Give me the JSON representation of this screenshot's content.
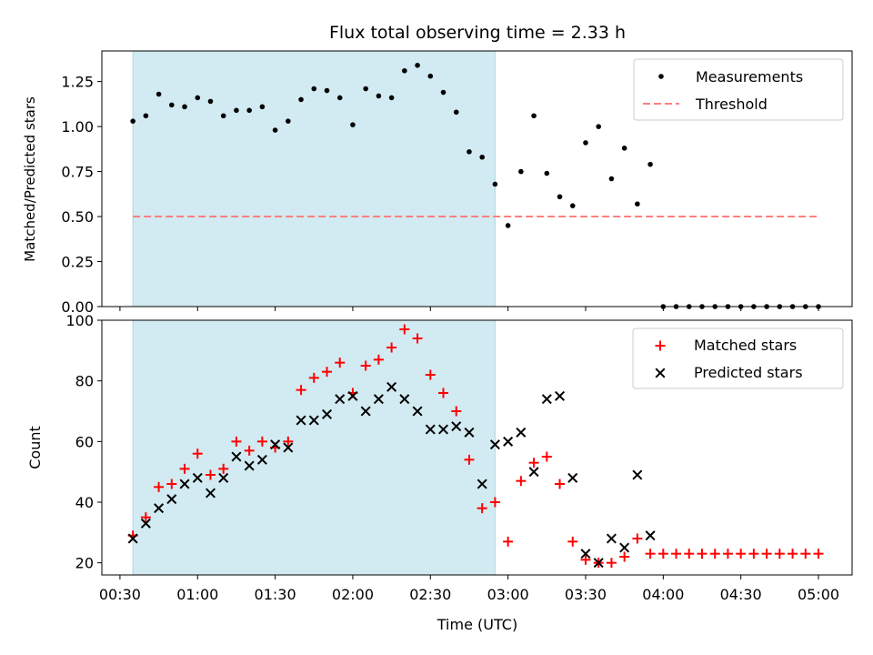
{
  "chart_data": [
    {
      "type": "scatter",
      "title": "Flux total observing time = 2.33 h",
      "xlabel": "",
      "ylabel": "Matched/Predicted stars",
      "ylim": [
        0,
        1.42
      ],
      "yticks": [
        0.0,
        0.25,
        0.5,
        0.75,
        1.0,
        1.25
      ],
      "ytick_labels": [
        "0.00",
        "0.25",
        "0.50",
        "0.75",
        "1.00",
        "1.25"
      ],
      "grid": false,
      "legend": "top-right",
      "shaded_region": {
        "start": "00:35",
        "end": "02:55",
        "color": "#add8e6"
      },
      "threshold": {
        "name": "Threshold",
        "value": 0.5,
        "from": "00:35",
        "to": "05:00",
        "color": "#ff7f7f"
      },
      "series": [
        {
          "name": "Measurements",
          "color": "#000000",
          "marker": "dot",
          "x": [
            "00:35",
            "00:40",
            "00:45",
            "00:50",
            "00:55",
            "01:00",
            "01:05",
            "01:10",
            "01:15",
            "01:20",
            "01:25",
            "01:30",
            "01:35",
            "01:40",
            "01:45",
            "01:50",
            "01:55",
            "02:00",
            "02:05",
            "02:10",
            "02:15",
            "02:20",
            "02:25",
            "02:30",
            "02:35",
            "02:40",
            "02:45",
            "02:50",
            "02:55",
            "03:00",
            "03:05",
            "03:10",
            "03:15",
            "03:20",
            "03:25",
            "03:30",
            "03:35",
            "03:40",
            "03:45",
            "03:50",
            "03:55",
            "04:00",
            "04:05",
            "04:10",
            "04:15",
            "04:20",
            "04:25",
            "04:30",
            "04:35",
            "04:40",
            "04:45",
            "04:50",
            "04:55",
            "05:00"
          ],
          "y": [
            1.03,
            1.06,
            1.18,
            1.12,
            1.11,
            1.16,
            1.14,
            1.06,
            1.09,
            1.09,
            1.11,
            0.98,
            1.03,
            1.15,
            1.21,
            1.2,
            1.16,
            1.01,
            1.21,
            1.17,
            1.16,
            1.31,
            1.34,
            1.28,
            1.19,
            1.08,
            0.86,
            0.83,
            0.68,
            0.45,
            0.75,
            1.06,
            0.74,
            0.61,
            0.56,
            0.91,
            1.0,
            0.71,
            0.88,
            0.57,
            0.79,
            0,
            0,
            0,
            0,
            0,
            0,
            0,
            0,
            0,
            0,
            0,
            0,
            0
          ]
        }
      ]
    },
    {
      "type": "scatter",
      "title": "",
      "xlabel": "Time (UTC)",
      "ylabel": "Count",
      "ylim": [
        16,
        100
      ],
      "yticks": [
        20,
        40,
        60,
        80,
        100
      ],
      "ytick_labels": [
        "20",
        "40",
        "60",
        "80",
        "100"
      ],
      "xticks": [
        "00:30",
        "01:00",
        "01:30",
        "02:00",
        "02:30",
        "03:00",
        "03:30",
        "04:00",
        "04:30",
        "05:00"
      ],
      "xlim": [
        "00:23",
        "05:13"
      ],
      "grid": false,
      "legend": "top-right",
      "shaded_region": {
        "start": "00:35",
        "end": "02:55",
        "color": "#add8e6"
      },
      "series": [
        {
          "name": "Matched stars",
          "color": "#ff0000",
          "marker": "plus",
          "x": [
            "00:35",
            "00:40",
            "00:45",
            "00:50",
            "00:55",
            "01:00",
            "01:05",
            "01:10",
            "01:15",
            "01:20",
            "01:25",
            "01:30",
            "01:35",
            "01:40",
            "01:45",
            "01:50",
            "01:55",
            "02:00",
            "02:05",
            "02:10",
            "02:15",
            "02:20",
            "02:25",
            "02:30",
            "02:35",
            "02:40",
            "02:45",
            "02:50",
            "02:55",
            "03:00",
            "03:05",
            "03:10",
            "03:15",
            "03:20",
            "03:25",
            "03:30",
            "03:35",
            "03:40",
            "03:45",
            "03:50",
            "03:55",
            "04:00",
            "04:05",
            "04:10",
            "04:15",
            "04:20",
            "04:25",
            "04:30",
            "04:35",
            "04:40",
            "04:45",
            "04:50",
            "04:55",
            "05:00"
          ],
          "y": [
            29,
            35,
            45,
            46,
            51,
            56,
            49,
            51,
            60,
            57,
            60,
            58,
            60,
            77,
            81,
            83,
            86,
            76,
            85,
            87,
            91,
            97,
            94,
            82,
            76,
            70,
            54,
            38,
            40,
            27,
            47,
            53,
            55,
            46,
            27,
            21,
            20,
            20,
            22,
            28,
            23,
            23,
            23,
            23,
            23,
            23,
            23,
            23,
            23,
            23,
            23,
            23,
            23,
            23
          ]
        },
        {
          "name": "Predicted stars",
          "color": "#000000",
          "marker": "x",
          "x": [
            "00:35",
            "00:40",
            "00:45",
            "00:50",
            "00:55",
            "01:00",
            "01:05",
            "01:10",
            "01:15",
            "01:20",
            "01:25",
            "01:30",
            "01:35",
            "01:40",
            "01:45",
            "01:50",
            "01:55",
            "02:00",
            "02:05",
            "02:10",
            "02:15",
            "02:20",
            "02:25",
            "02:30",
            "02:35",
            "02:40",
            "02:45",
            "02:50",
            "02:55",
            "03:00",
            "03:05",
            "03:10",
            "03:15",
            "03:20",
            "03:25",
            "03:30",
            "03:35",
            "03:40",
            "03:45",
            "03:50",
            "03:55"
          ],
          "y": [
            28,
            33,
            38,
            41,
            46,
            48,
            43,
            48,
            55,
            52,
            54,
            59,
            58,
            67,
            67,
            69,
            74,
            75,
            70,
            74,
            78,
            74,
            70,
            64,
            64,
            65,
            63,
            46,
            59,
            60,
            63,
            50,
            74,
            75,
            48,
            23,
            20,
            28,
            25,
            49,
            29
          ]
        }
      ]
    }
  ]
}
